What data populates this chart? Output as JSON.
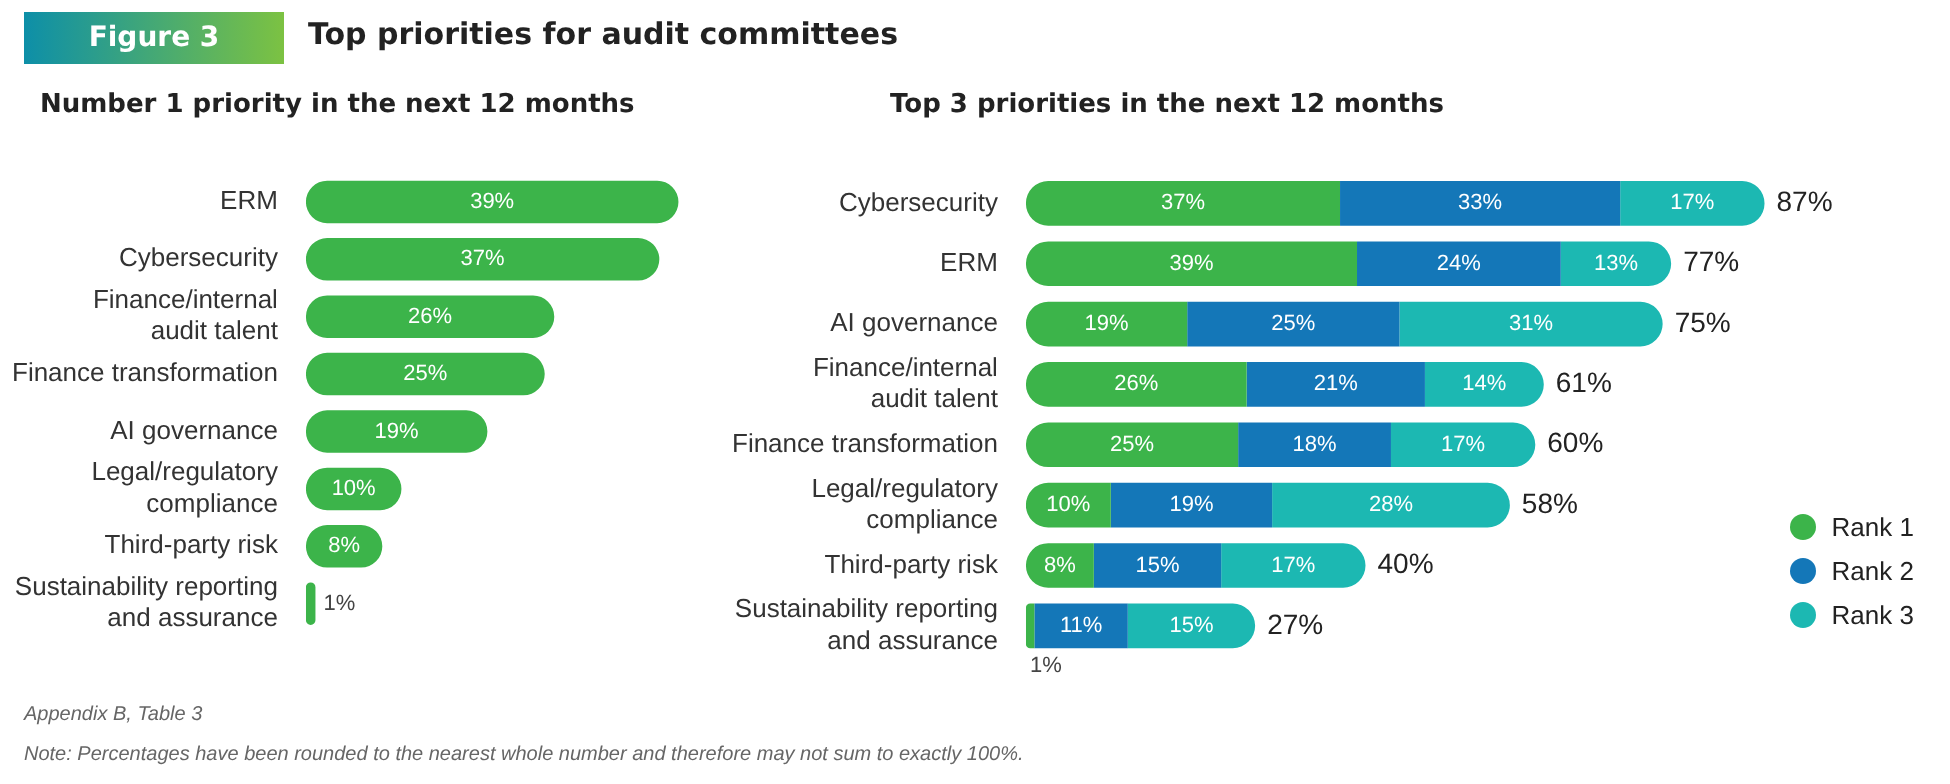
{
  "chart_data": [
    {
      "type": "bar",
      "title": "Top priorities for audit committees",
      "subtitle": "Number 1 priority in the next 12 months",
      "orientation": "horizontal",
      "tick_labels": "y",
      "annotations": [
        "Figure 3",
        "Appendix B, Table 3",
        "Note: Percentages have been rounded to the nearest whole number and therefore may not sum to exactly 100%."
      ],
      "categories": [
        "ERM",
        "Cybersecurity",
        "Finance/internal\naudit talent",
        "Finance transformation",
        "AI governance",
        "Legal/regulatory\ncompliance",
        "Third-party risk",
        "Sustainability reporting\nand assurance"
      ],
      "values": [
        39,
        37,
        26,
        25,
        19,
        10,
        8,
        1
      ],
      "color": "#3cb44a",
      "value_labels": [
        "39%",
        "37%",
        "26%",
        "25%",
        "19%",
        "10%",
        "8%",
        "1%"
      ]
    },
    {
      "type": "bar",
      "title": "Top 3 priorities in the next 12 months",
      "orientation": "horizontal",
      "stacked": true,
      "tick_labels": "y",
      "legend": "bottom right",
      "categories": [
        "Cybersecurity",
        "ERM",
        "AI governance",
        "Finance/internal\naudit talent",
        "Finance transformation",
        "Legal/regulatory\ncompliance",
        "Third-party risk",
        "Sustainability reporting\nand assurance"
      ],
      "series": [
        {
          "name": "Rank 1",
          "color": "#3cb44a",
          "values": [
            37,
            39,
            19,
            26,
            25,
            10,
            8,
            1
          ],
          "value_labels": [
            "37%",
            "39%",
            "19%",
            "26%",
            "25%",
            "10%",
            "8%",
            "1%"
          ]
        },
        {
          "name": "Rank 2",
          "color": "#1477b8",
          "values": [
            33,
            24,
            25,
            21,
            18,
            19,
            15,
            11
          ],
          "value_labels": [
            "33%",
            "24%",
            "25%",
            "21%",
            "18%",
            "19%",
            "15%",
            "11%"
          ]
        },
        {
          "name": "Rank 3",
          "color": "#1cb8b2",
          "values": [
            17,
            13,
            31,
            14,
            17,
            28,
            17,
            15
          ],
          "value_labels": [
            "17%",
            "13%",
            "31%",
            "14%",
            "17%",
            "28%",
            "17%",
            "15%"
          ]
        }
      ],
      "totals": [
        "87%",
        "77%",
        "75%",
        "61%",
        "60%",
        "58%",
        "40%",
        "27%"
      ]
    }
  ]
}
